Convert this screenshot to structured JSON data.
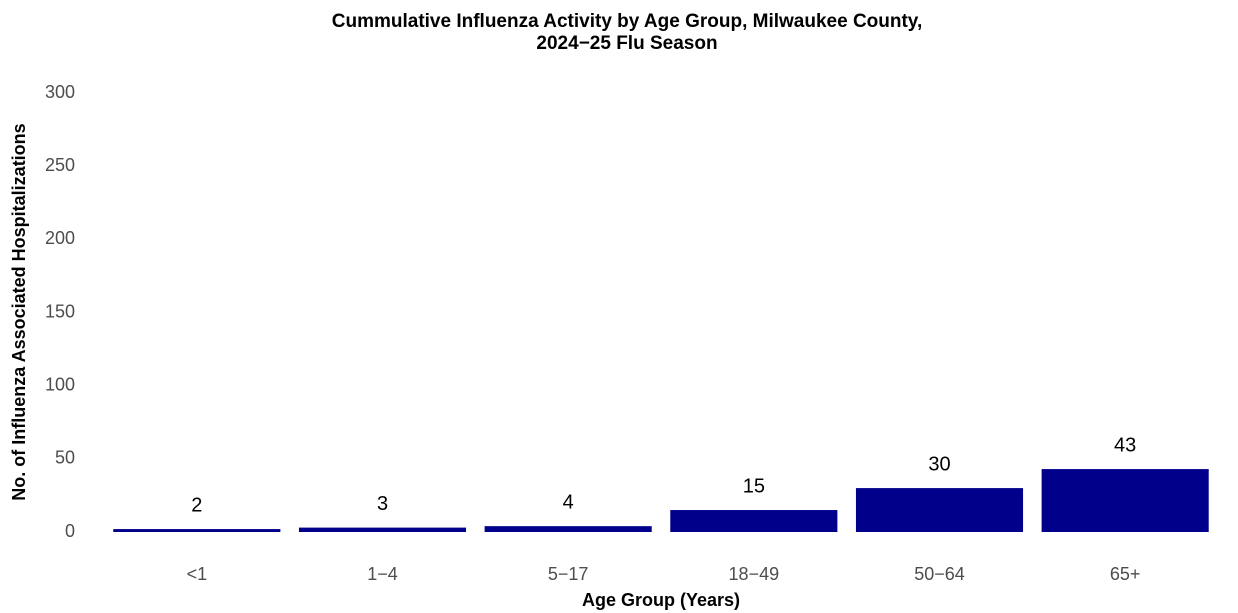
{
  "chart_data": {
    "type": "bar",
    "title": [
      "Cummulative Influenza Activity by Age Group, Milwaukee County,",
      "2024−25 Flu Season"
    ],
    "x_label": "Age Group (Years)",
    "y_label": "No. of Influenza Associated Hospitalizations",
    "categories": [
      "<1",
      "1−4",
      "5−17",
      "18−49",
      "50−64",
      "65+"
    ],
    "values": [
      2,
      3,
      4,
      15,
      30,
      43
    ],
    "color": "#00008b",
    "ylim": [
      0,
      300
    ],
    "yticks": [
      0,
      50,
      100,
      150,
      200,
      250,
      300
    ],
    "grid": false
  }
}
